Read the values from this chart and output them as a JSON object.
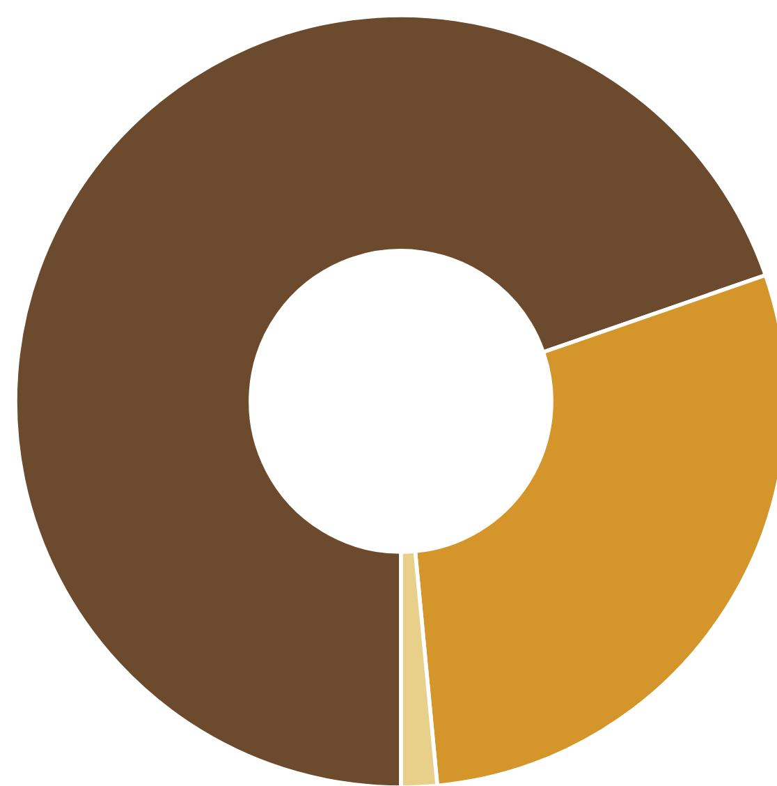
{
  "chart_data": {
    "type": "donut",
    "categories": [
      null,
      null,
      null
    ],
    "values": [
      69.7,
      28.8,
      1.5
    ],
    "colors": [
      "#6b4a2e",
      "#d4962a",
      "#e8d08a"
    ]
  }
}
